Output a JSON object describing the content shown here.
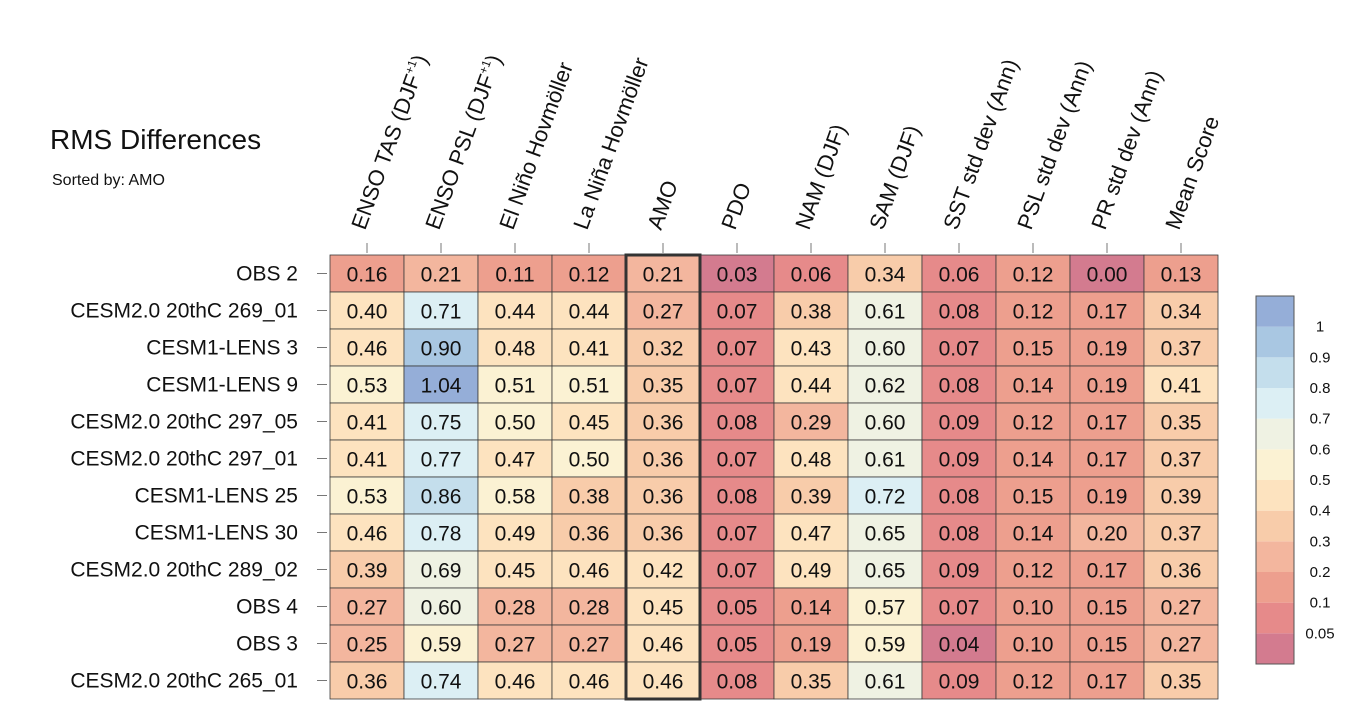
{
  "title": "RMS Differences",
  "subtitle": "Sorted by: AMO",
  "chart_data": {
    "type": "heatmap",
    "sorted_by": "AMO",
    "highlighted_column": "AMO",
    "columns": [
      {
        "pre": "ENSO TAS (DJF",
        "sup": "+1",
        "post": ")"
      },
      {
        "pre": "ENSO PSL (DJF",
        "sup": "+1",
        "post": ")"
      },
      {
        "pre": "El Niño Hovmöller",
        "sup": "",
        "post": ""
      },
      {
        "pre": "La Niña Hovmöller",
        "sup": "",
        "post": ""
      },
      {
        "pre": "AMO",
        "sup": "",
        "post": ""
      },
      {
        "pre": "PDO",
        "sup": "",
        "post": ""
      },
      {
        "pre": "NAM (DJF)",
        "sup": "",
        "post": ""
      },
      {
        "pre": "SAM (DJF)",
        "sup": "",
        "post": ""
      },
      {
        "pre": "SST std dev (Ann)",
        "sup": "",
        "post": ""
      },
      {
        "pre": "PSL std dev (Ann)",
        "sup": "",
        "post": ""
      },
      {
        "pre": "PR std dev (Ann)",
        "sup": "",
        "post": ""
      },
      {
        "pre": "Mean Score",
        "sup": "",
        "post": ""
      }
    ],
    "rows": [
      {
        "label": "OBS 2",
        "values": [
          "0.16",
          "0.21",
          "0.11",
          "0.12",
          "0.21",
          "0.03",
          "0.06",
          "0.34",
          "0.06",
          "0.12",
          "0.00",
          "0.13"
        ]
      },
      {
        "label": "CESM2.0 20thC 269_01",
        "values": [
          "0.40",
          "0.71",
          "0.44",
          "0.44",
          "0.27",
          "0.07",
          "0.38",
          "0.61",
          "0.08",
          "0.12",
          "0.17",
          "0.34"
        ]
      },
      {
        "label": "CESM1-LENS 3",
        "values": [
          "0.46",
          "0.90",
          "0.48",
          "0.41",
          "0.32",
          "0.07",
          "0.43",
          "0.60",
          "0.07",
          "0.15",
          "0.19",
          "0.37"
        ]
      },
      {
        "label": "CESM1-LENS 9",
        "values": [
          "0.53",
          "1.04",
          "0.51",
          "0.51",
          "0.35",
          "0.07",
          "0.44",
          "0.62",
          "0.08",
          "0.14",
          "0.19",
          "0.41"
        ]
      },
      {
        "label": "CESM2.0 20thC 297_05",
        "values": [
          "0.41",
          "0.75",
          "0.50",
          "0.45",
          "0.36",
          "0.08",
          "0.29",
          "0.60",
          "0.09",
          "0.12",
          "0.17",
          "0.35"
        ]
      },
      {
        "label": "CESM2.0 20thC 297_01",
        "values": [
          "0.41",
          "0.77",
          "0.47",
          "0.50",
          "0.36",
          "0.07",
          "0.48",
          "0.61",
          "0.09",
          "0.14",
          "0.17",
          "0.37"
        ]
      },
      {
        "label": "CESM1-LENS 25",
        "values": [
          "0.53",
          "0.86",
          "0.58",
          "0.38",
          "0.36",
          "0.08",
          "0.39",
          "0.72",
          "0.08",
          "0.15",
          "0.19",
          "0.39"
        ]
      },
      {
        "label": "CESM1-LENS 30",
        "values": [
          "0.46",
          "0.78",
          "0.49",
          "0.36",
          "0.36",
          "0.07",
          "0.47",
          "0.65",
          "0.08",
          "0.14",
          "0.20",
          "0.37"
        ]
      },
      {
        "label": "CESM2.0 20thC 289_02",
        "values": [
          "0.39",
          "0.69",
          "0.45",
          "0.46",
          "0.42",
          "0.07",
          "0.49",
          "0.65",
          "0.09",
          "0.12",
          "0.17",
          "0.36"
        ]
      },
      {
        "label": "OBS 4",
        "values": [
          "0.27",
          "0.60",
          "0.28",
          "0.28",
          "0.45",
          "0.05",
          "0.14",
          "0.57",
          "0.07",
          "0.10",
          "0.15",
          "0.27"
        ]
      },
      {
        "label": "OBS 3",
        "values": [
          "0.25",
          "0.59",
          "0.27",
          "0.27",
          "0.46",
          "0.05",
          "0.19",
          "0.59",
          "0.04",
          "0.10",
          "0.15",
          "0.27"
        ]
      },
      {
        "label": "CESM2.0 20thC 265_01",
        "values": [
          "0.36",
          "0.74",
          "0.46",
          "0.46",
          "0.46",
          "0.08",
          "0.35",
          "0.61",
          "0.09",
          "0.12",
          "0.17",
          "0.35"
        ]
      }
    ],
    "colorbar": {
      "labels": [
        "0.05",
        "0.1",
        "0.2",
        "0.3",
        "0.4",
        "0.5",
        "0.6",
        "0.7",
        "0.8",
        "0.9",
        "1"
      ],
      "thresholds": [
        0.05,
        0.1,
        0.2,
        0.3,
        0.4,
        0.5,
        0.6,
        0.7,
        0.8,
        0.9,
        1
      ],
      "colors": [
        "#d37b8f",
        "#e68a8a",
        "#ed9f8e",
        "#f3b69e",
        "#f8ccaa",
        "#fde3bf",
        "#fbf2d3",
        "#eff2e3",
        "#dceff4",
        "#c4deec",
        "#a9c7e2",
        "#95aed8"
      ]
    }
  }
}
